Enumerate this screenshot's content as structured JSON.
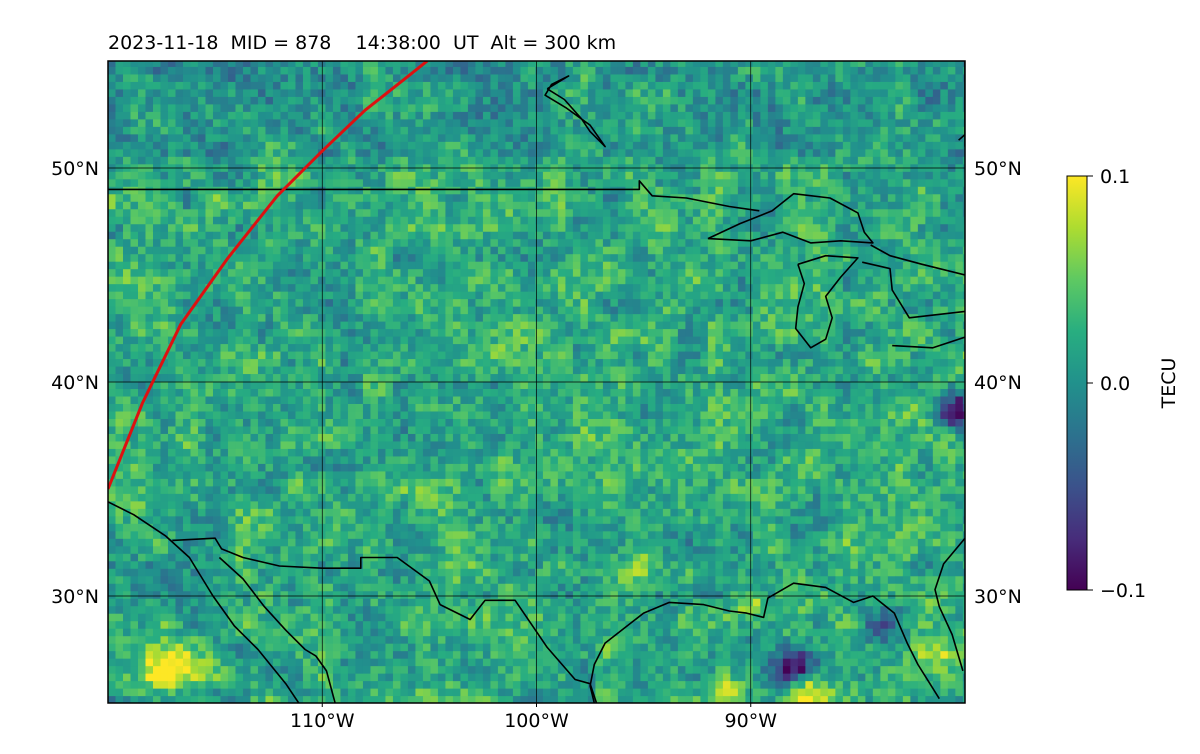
{
  "chart_data": {
    "type": "heatmap",
    "title": "2023-11-18  MID = 878    14:38:00  UT  Alt = 300 km",
    "projection": "lat-lon map",
    "extent": {
      "lon": [
        -120,
        -80
      ],
      "lat": [
        25,
        55
      ]
    },
    "x_ticks": [
      {
        "value": -110,
        "label": "110°W"
      },
      {
        "value": -100,
        "label": "100°W"
      },
      {
        "value": -90,
        "label": "90°W"
      }
    ],
    "y_ticks": [
      {
        "value": 30,
        "label": "30°N"
      },
      {
        "value": 40,
        "label": "40°N"
      },
      {
        "value": 50,
        "label": "50°N"
      }
    ],
    "grid": true,
    "colorbar": {
      "label": "TECU",
      "colormap": "viridis",
      "range": [
        -0.1,
        0.1
      ],
      "ticks": [
        {
          "value": 0.1,
          "label": "0.1"
        },
        {
          "value": 0.0,
          "label": "0.0"
        },
        {
          "value": -0.1,
          "label": "−0.1"
        }
      ]
    },
    "field_description": "Noisy differential TEC, mostly near +0.01 to +0.03 TECU (green-teal); saturated positive patches (yellow, ~0.1) near the southwest and Gulf coast; negative patches (purple) near the southeast.",
    "hotspots": [
      {
        "lon": -117.4,
        "lat": 26.5,
        "value": 0.1
      },
      {
        "lon": -116.2,
        "lat": 27.0,
        "value": 0.07
      },
      {
        "lon": -91.0,
        "lat": 25.4,
        "value": 0.09
      },
      {
        "lon": -87.3,
        "lat": 25.6,
        "value": 0.1
      },
      {
        "lon": -95.0,
        "lat": 31.5,
        "value": 0.07
      },
      {
        "lon": -90.0,
        "lat": 29.5,
        "value": 0.08
      },
      {
        "lon": -81.5,
        "lat": 27.0,
        "value": 0.07
      },
      {
        "lon": -88.0,
        "lat": 26.8,
        "value": -0.1
      },
      {
        "lon": -80.3,
        "lat": 38.7,
        "value": -0.09
      },
      {
        "lon": -84.0,
        "lat": 28.5,
        "value": -0.06
      }
    ],
    "overlay_line": {
      "color": "#dd1111",
      "points": [
        [
          -120,
          35.0
        ],
        [
          -118.4,
          39.0
        ],
        [
          -116.6,
          42.7
        ],
        [
          -114.4,
          45.8
        ],
        [
          -112.1,
          48.7
        ],
        [
          -110.0,
          50.8
        ],
        [
          -108.0,
          52.7
        ],
        [
          -106.1,
          54.2
        ],
        [
          -105.1,
          55.0
        ]
      ]
    },
    "coastlines": [
      [
        [
          -120,
          34.4
        ],
        [
          -118.8,
          33.8
        ],
        [
          -117.3,
          32.8
        ],
        [
          -116.2,
          31.8
        ],
        [
          -115.1,
          30.0
        ],
        [
          -114.1,
          28.6
        ],
        [
          -113.0,
          27.5
        ],
        [
          -111.7,
          25.9
        ],
        [
          -111.1,
          25.0
        ]
      ],
      [
        [
          -117.0,
          32.6
        ],
        [
          -115.0,
          32.7
        ],
        [
          -114.7,
          32.2
        ],
        [
          -113.7,
          31.8
        ],
        [
          -112.0,
          31.4
        ],
        [
          -110.0,
          31.3
        ],
        [
          -108.2,
          31.3
        ],
        [
          -108.2,
          31.8
        ],
        [
          -106.5,
          31.8
        ],
        [
          -105.0,
          30.7
        ],
        [
          -104.5,
          29.6
        ],
        [
          -103.1,
          28.9
        ],
        [
          -102.4,
          29.8
        ],
        [
          -101.0,
          29.8
        ],
        [
          -99.5,
          27.6
        ],
        [
          -98.2,
          26.1
        ],
        [
          -97.5,
          25.9
        ],
        [
          -97.2,
          25.0
        ]
      ],
      [
        [
          -114.8,
          31.8
        ],
        [
          -113.7,
          30.8
        ],
        [
          -112.7,
          29.5
        ],
        [
          -111.7,
          28.4
        ],
        [
          -110.8,
          27.5
        ],
        [
          -110.3,
          27.2
        ],
        [
          -109.8,
          26.5
        ],
        [
          -109.4,
          25.0
        ]
      ],
      [
        [
          -97.3,
          25.0
        ],
        [
          -97.5,
          25.8
        ],
        [
          -97.3,
          26.8
        ],
        [
          -96.8,
          27.8
        ],
        [
          -95.0,
          29.2
        ],
        [
          -93.8,
          29.7
        ],
        [
          -92.2,
          29.6
        ],
        [
          -91.0,
          29.3
        ],
        [
          -90.2,
          29.2
        ],
        [
          -89.4,
          29.0
        ],
        [
          -89.2,
          29.9
        ],
        [
          -88.0,
          30.6
        ],
        [
          -86.5,
          30.4
        ],
        [
          -85.2,
          29.7
        ],
        [
          -84.3,
          30.0
        ],
        [
          -83.3,
          29.2
        ],
        [
          -82.7,
          27.8
        ],
        [
          -82.2,
          26.8
        ],
        [
          -81.7,
          26.0
        ],
        [
          -81.2,
          25.2
        ]
      ],
      [
        [
          -80.0,
          32.7
        ],
        [
          -81.0,
          31.5
        ],
        [
          -81.4,
          30.3
        ],
        [
          -81.2,
          29.5
        ],
        [
          -80.6,
          28.2
        ],
        [
          -80.1,
          26.5
        ]
      ],
      [
        [
          -120,
          49.0
        ],
        [
          -110.0,
          49.0
        ],
        [
          -100.0,
          49.0
        ],
        [
          -95.2,
          49.0
        ],
        [
          -95.2,
          49.4
        ],
        [
          -94.6,
          48.7
        ],
        [
          -93.0,
          48.6
        ],
        [
          -91.0,
          48.2
        ],
        [
          -89.6,
          48.0
        ]
      ],
      [
        [
          -92.0,
          46.7
        ],
        [
          -90.5,
          47.4
        ],
        [
          -89.0,
          48.0
        ],
        [
          -88.0,
          48.8
        ],
        [
          -86.3,
          48.6
        ],
        [
          -85.0,
          47.9
        ],
        [
          -84.7,
          47.0
        ],
        [
          -84.3,
          46.5
        ],
        [
          -85.8,
          46.6
        ],
        [
          -87.2,
          46.5
        ],
        [
          -88.5,
          47.0
        ],
        [
          -90.0,
          46.6
        ],
        [
          -92.0,
          46.7
        ]
      ],
      [
        [
          -84.4,
          46.4
        ],
        [
          -83.5,
          45.9
        ],
        [
          -82.0,
          45.5
        ],
        [
          -80.0,
          45.0
        ]
      ],
      [
        [
          -87.8,
          45.5
        ],
        [
          -87.5,
          44.6
        ],
        [
          -87.8,
          43.5
        ],
        [
          -87.9,
          42.5
        ],
        [
          -87.2,
          41.6
        ],
        [
          -86.5,
          42.0
        ],
        [
          -86.2,
          43.0
        ],
        [
          -86.5,
          44.0
        ],
        [
          -85.8,
          44.9
        ],
        [
          -85.0,
          45.8
        ],
        [
          -86.5,
          45.9
        ],
        [
          -87.8,
          45.5
        ]
      ],
      [
        [
          -84.8,
          45.6
        ],
        [
          -83.5,
          45.3
        ],
        [
          -83.4,
          44.3
        ],
        [
          -82.6,
          43.0
        ],
        [
          -80.0,
          43.3
        ]
      ],
      [
        [
          -83.4,
          41.7
        ],
        [
          -81.5,
          41.6
        ],
        [
          -80.0,
          42.1
        ]
      ],
      [
        [
          -80.3,
          51.3
        ],
        [
          -79.5,
          52.0
        ],
        [
          -78.9,
          53.3
        ],
        [
          -80.0,
          55.0
        ]
      ],
      [
        [
          -80.0,
          51.0
        ],
        [
          -80.0,
          55.0
        ]
      ],
      [
        [
          -99.5,
          53.7
        ],
        [
          -98.7,
          53.2
        ],
        [
          -97.9,
          52.3
        ],
        [
          -97.5,
          51.7
        ],
        [
          -96.8,
          51.0
        ],
        [
          -97.5,
          52.0
        ],
        [
          -98.6,
          52.8
        ],
        [
          -99.6,
          53.4
        ],
        [
          -99.3,
          53.9
        ],
        [
          -98.5,
          54.3
        ],
        [
          -99.5,
          53.7
        ]
      ]
    ]
  }
}
